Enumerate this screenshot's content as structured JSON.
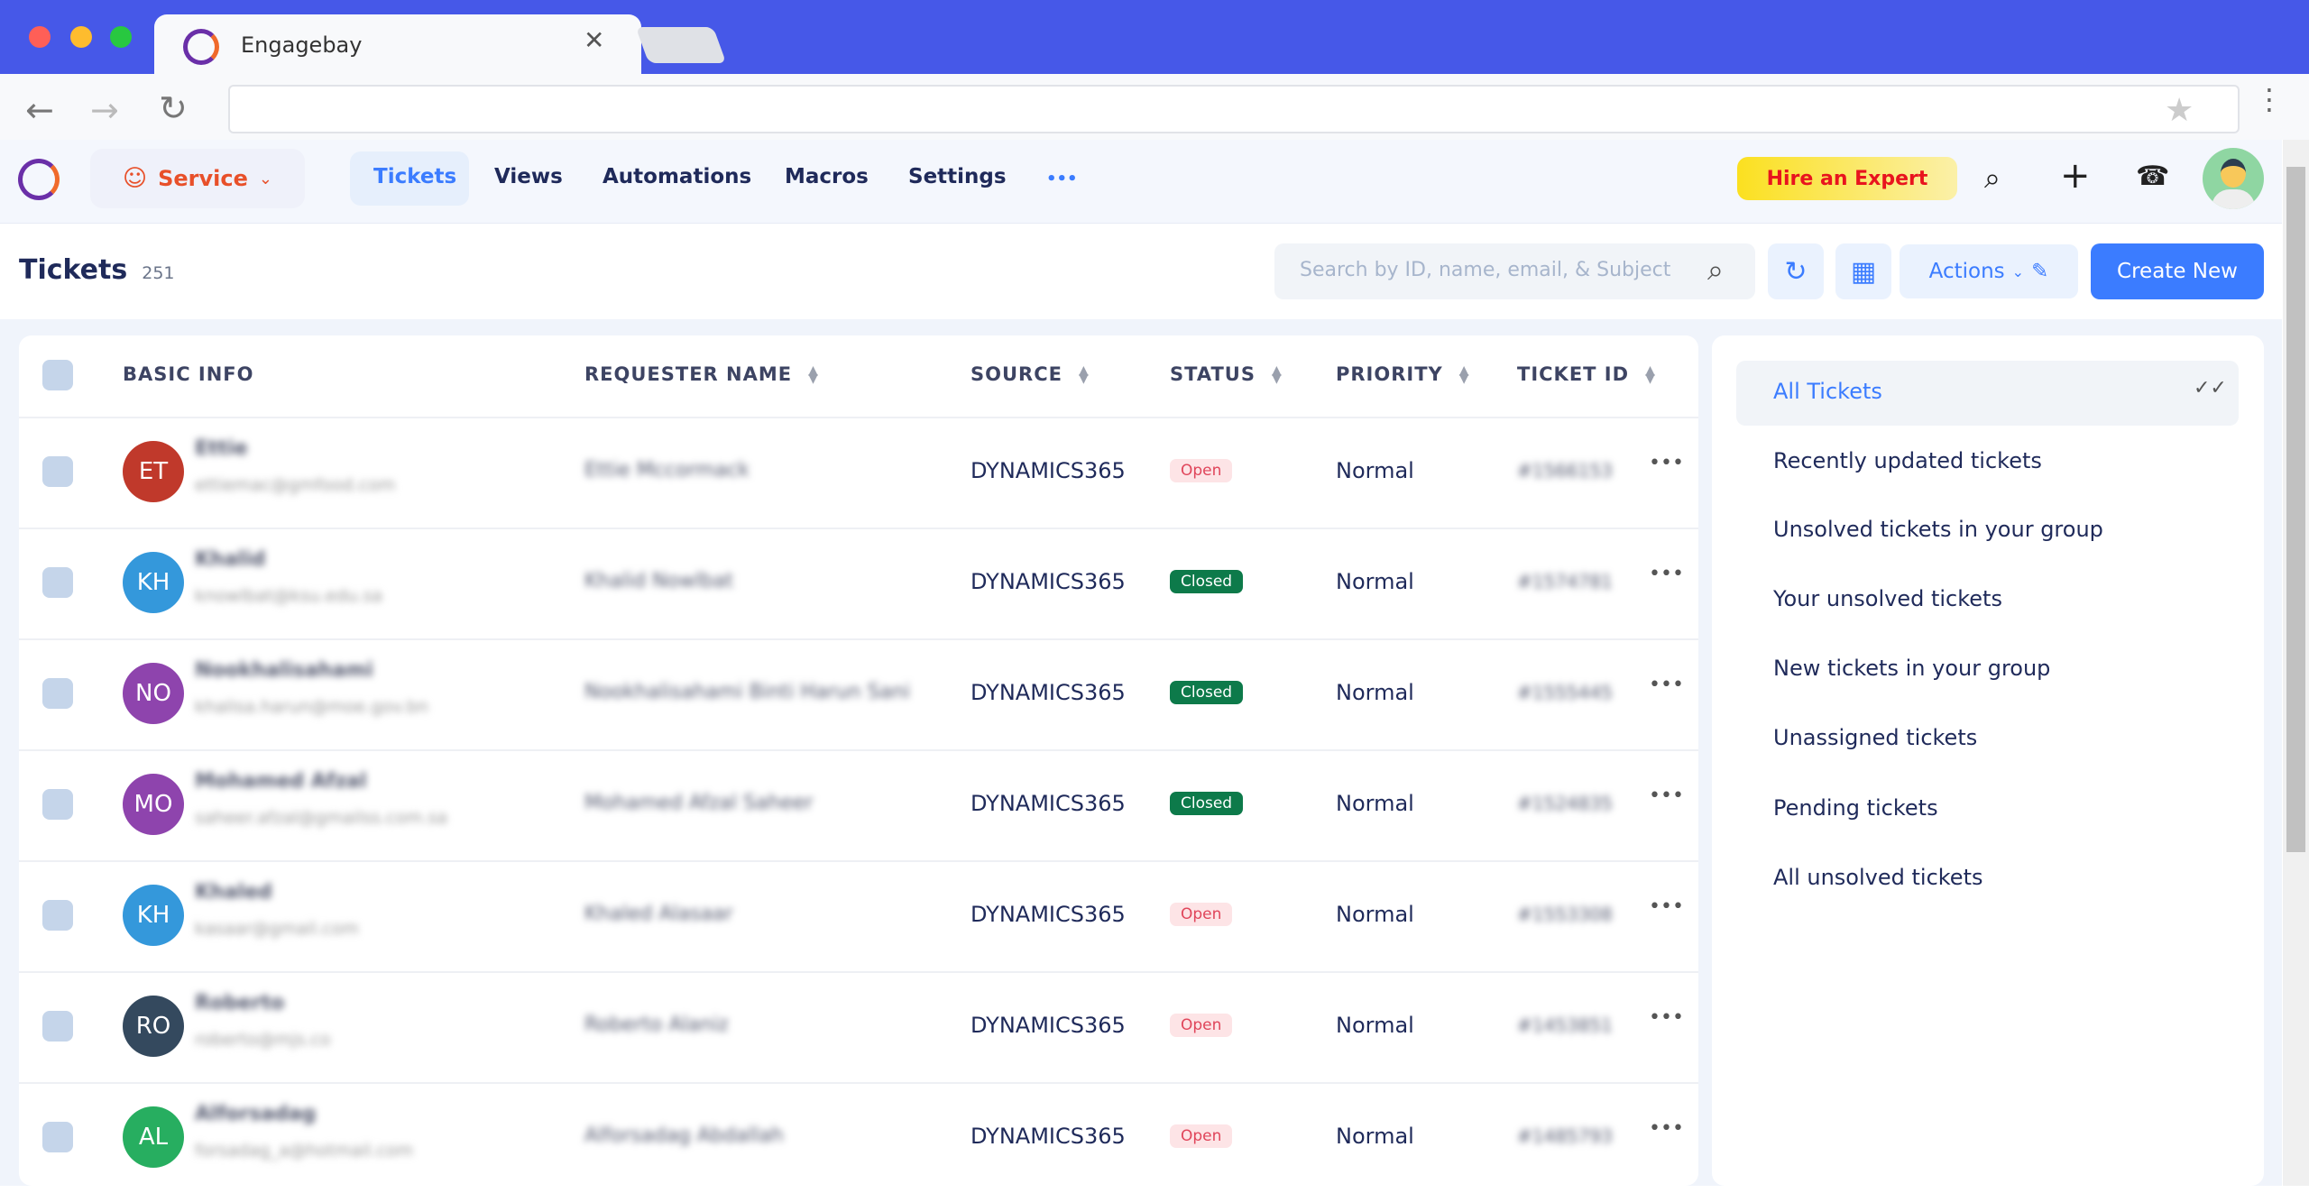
{
  "browser": {
    "tab_title": "Engagebay"
  },
  "nav": {
    "module": "Service",
    "items": [
      "Tickets",
      "Views",
      "Automations",
      "Macros",
      "Settings"
    ],
    "more": "•••",
    "hire_label": "Hire an Expert"
  },
  "page": {
    "title": "Tickets",
    "count": "251",
    "search_placeholder": "Search by ID, name, email, & Subject",
    "actions_label": "Actions",
    "create_label": "Create New"
  },
  "table": {
    "headers": [
      "BASIC INFO",
      "REQUESTER NAME",
      "SOURCE",
      "STATUS",
      "PRIORITY",
      "TICKET ID"
    ],
    "rows": [
      {
        "initials": "ET",
        "color": "#c0392b",
        "name": "Ettie",
        "email": "ettiemac@gmfood.com",
        "requester": "Ettie Mccormack",
        "source": "DYNAMICS365",
        "status": "Open",
        "priority": "Normal",
        "id": "#1566153"
      },
      {
        "initials": "KH",
        "color": "#3498db",
        "name": "Khalid",
        "email": "knowlbat@ksu.edu.sa",
        "requester": "Khalid Nowlbat",
        "source": "DYNAMICS365",
        "status": "Closed",
        "priority": "Normal",
        "id": "#1574781"
      },
      {
        "initials": "NO",
        "color": "#8e44ad",
        "name": "Nookhalisahami",
        "email": "khalisa.harun@moe.gov.bn",
        "requester": "Nookhalisahami Binti Harun Sani",
        "source": "DYNAMICS365",
        "status": "Closed",
        "priority": "Normal",
        "id": "#1555445"
      },
      {
        "initials": "MO",
        "color": "#8e44ad",
        "name": "Mohamed Afzal",
        "email": "saheer.afzal@gmailss.com.sa",
        "requester": "Mohamed Afzal Saheer",
        "source": "DYNAMICS365",
        "status": "Closed",
        "priority": "Normal",
        "id": "#1524835"
      },
      {
        "initials": "KH",
        "color": "#3498db",
        "name": "Khaled",
        "email": "kasaar@gmail.com",
        "requester": "Khaled Alasaar",
        "source": "DYNAMICS365",
        "status": "Open",
        "priority": "Normal",
        "id": "#1553308"
      },
      {
        "initials": "RO",
        "color": "#34495e",
        "name": "Roberto",
        "email": "roberto@mjs.co",
        "requester": "Roberto Alaniz",
        "source": "DYNAMICS365",
        "status": "Open",
        "priority": "Normal",
        "id": "#1453851"
      },
      {
        "initials": "AL",
        "color": "#27ae60",
        "name": "Alforsadag",
        "email": "forsadag_a@hotmail.com",
        "requester": "Alforsadag Abdallah",
        "source": "DYNAMICS365",
        "status": "Open",
        "priority": "Normal",
        "id": "#1485793"
      }
    ]
  },
  "views": [
    "All Tickets",
    "Recently updated tickets",
    "Unsolved tickets in your group",
    "Your unsolved tickets",
    "New tickets in your group",
    "Unassigned tickets",
    "Pending tickets",
    "All unsolved tickets"
  ],
  "colors": {
    "accent": "#3b7cff",
    "open_bg": "#fde4e6",
    "open_fg": "#e0455a",
    "closed_bg": "#0d7a4a"
  }
}
